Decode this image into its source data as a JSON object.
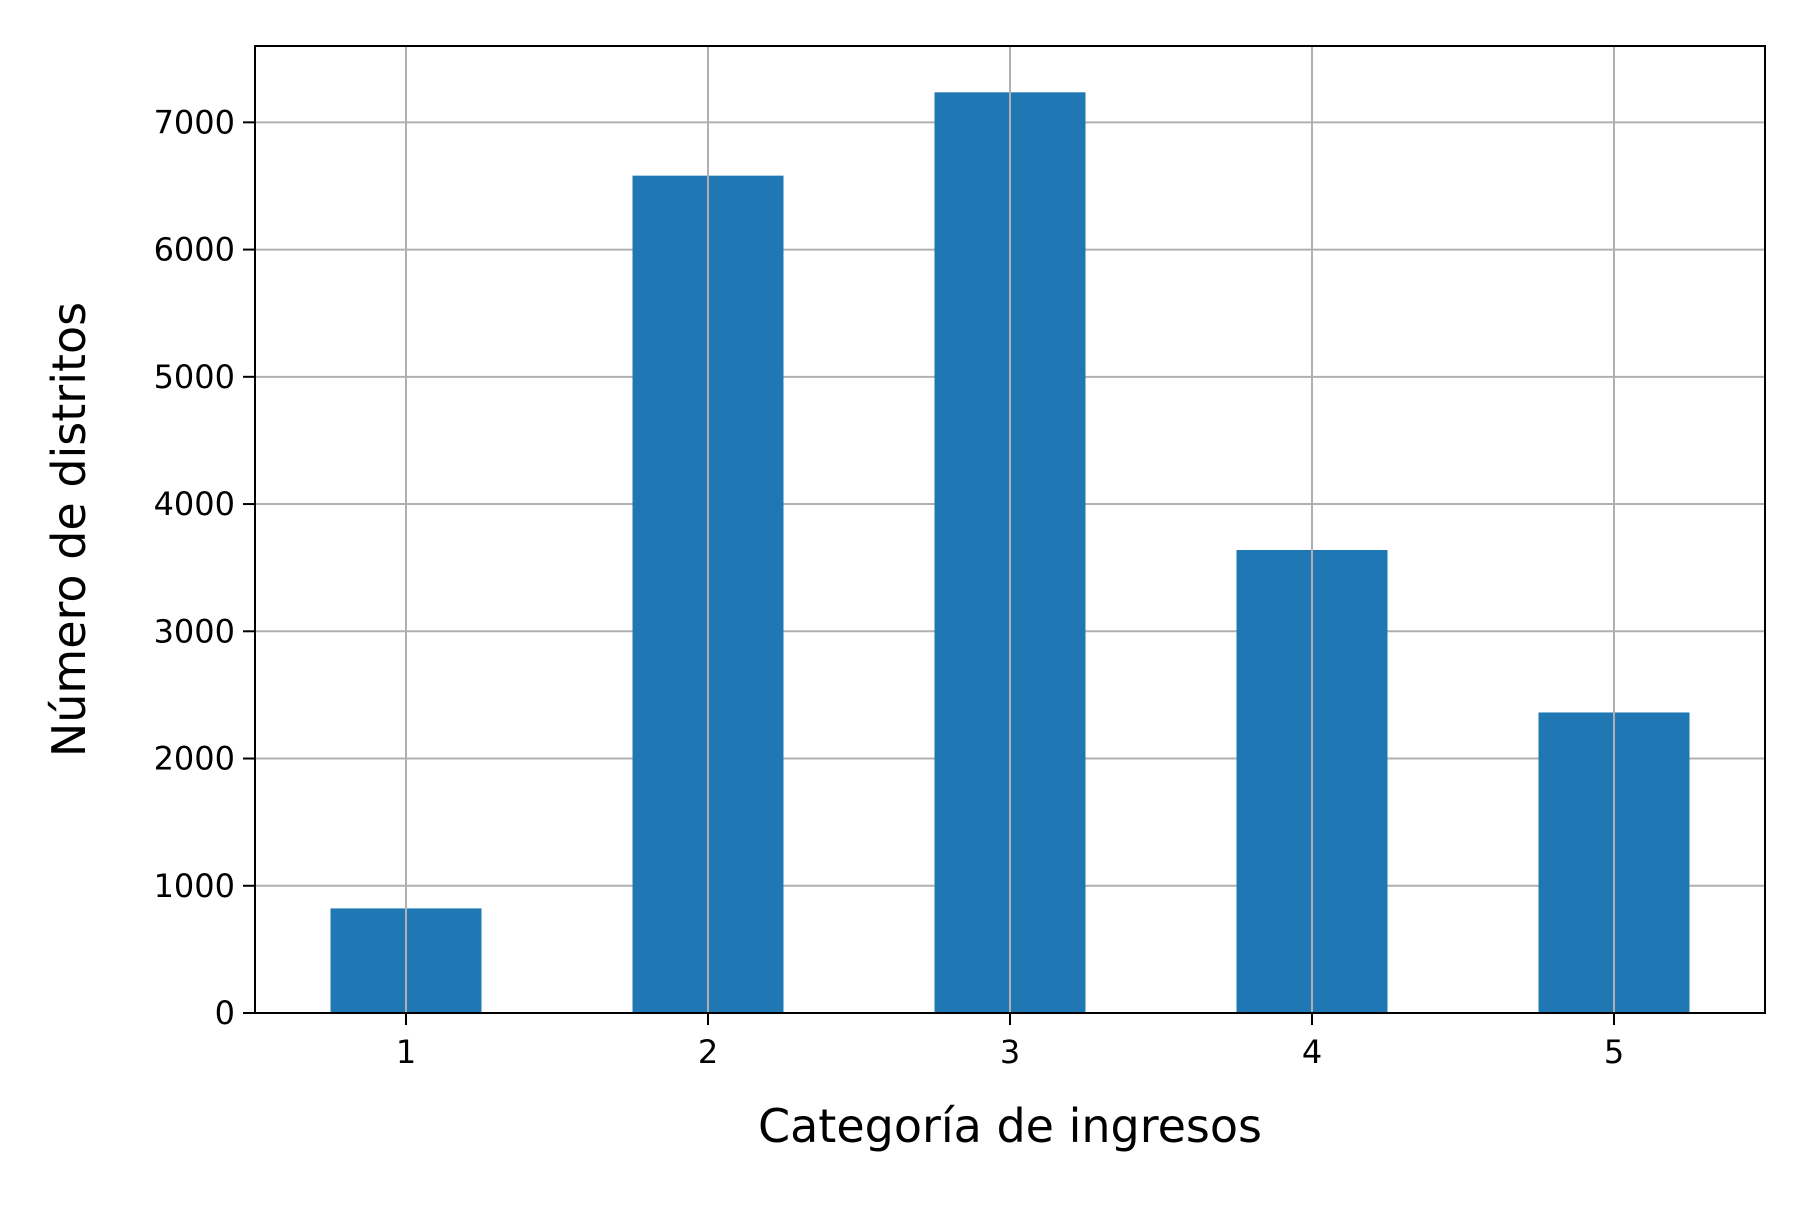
{
  "chart_data": {
    "type": "bar",
    "title": "",
    "categories": [
      "1",
      "2",
      "3",
      "4",
      "5"
    ],
    "values": [
      822,
      6581,
      7236,
      3639,
      2362
    ],
    "xlabel": "Categoría de ingresos",
    "ylabel": "Número de distritos",
    "ylim": [
      0,
      7600
    ],
    "yticks": [
      "0",
      "1000",
      "2000",
      "3000",
      "4000",
      "5000",
      "6000",
      "7000"
    ],
    "grid": true,
    "legend": "none",
    "colors": {
      "bar": "#1f77b4",
      "grid": "#b0b0b0",
      "axis": "#000000"
    }
  }
}
